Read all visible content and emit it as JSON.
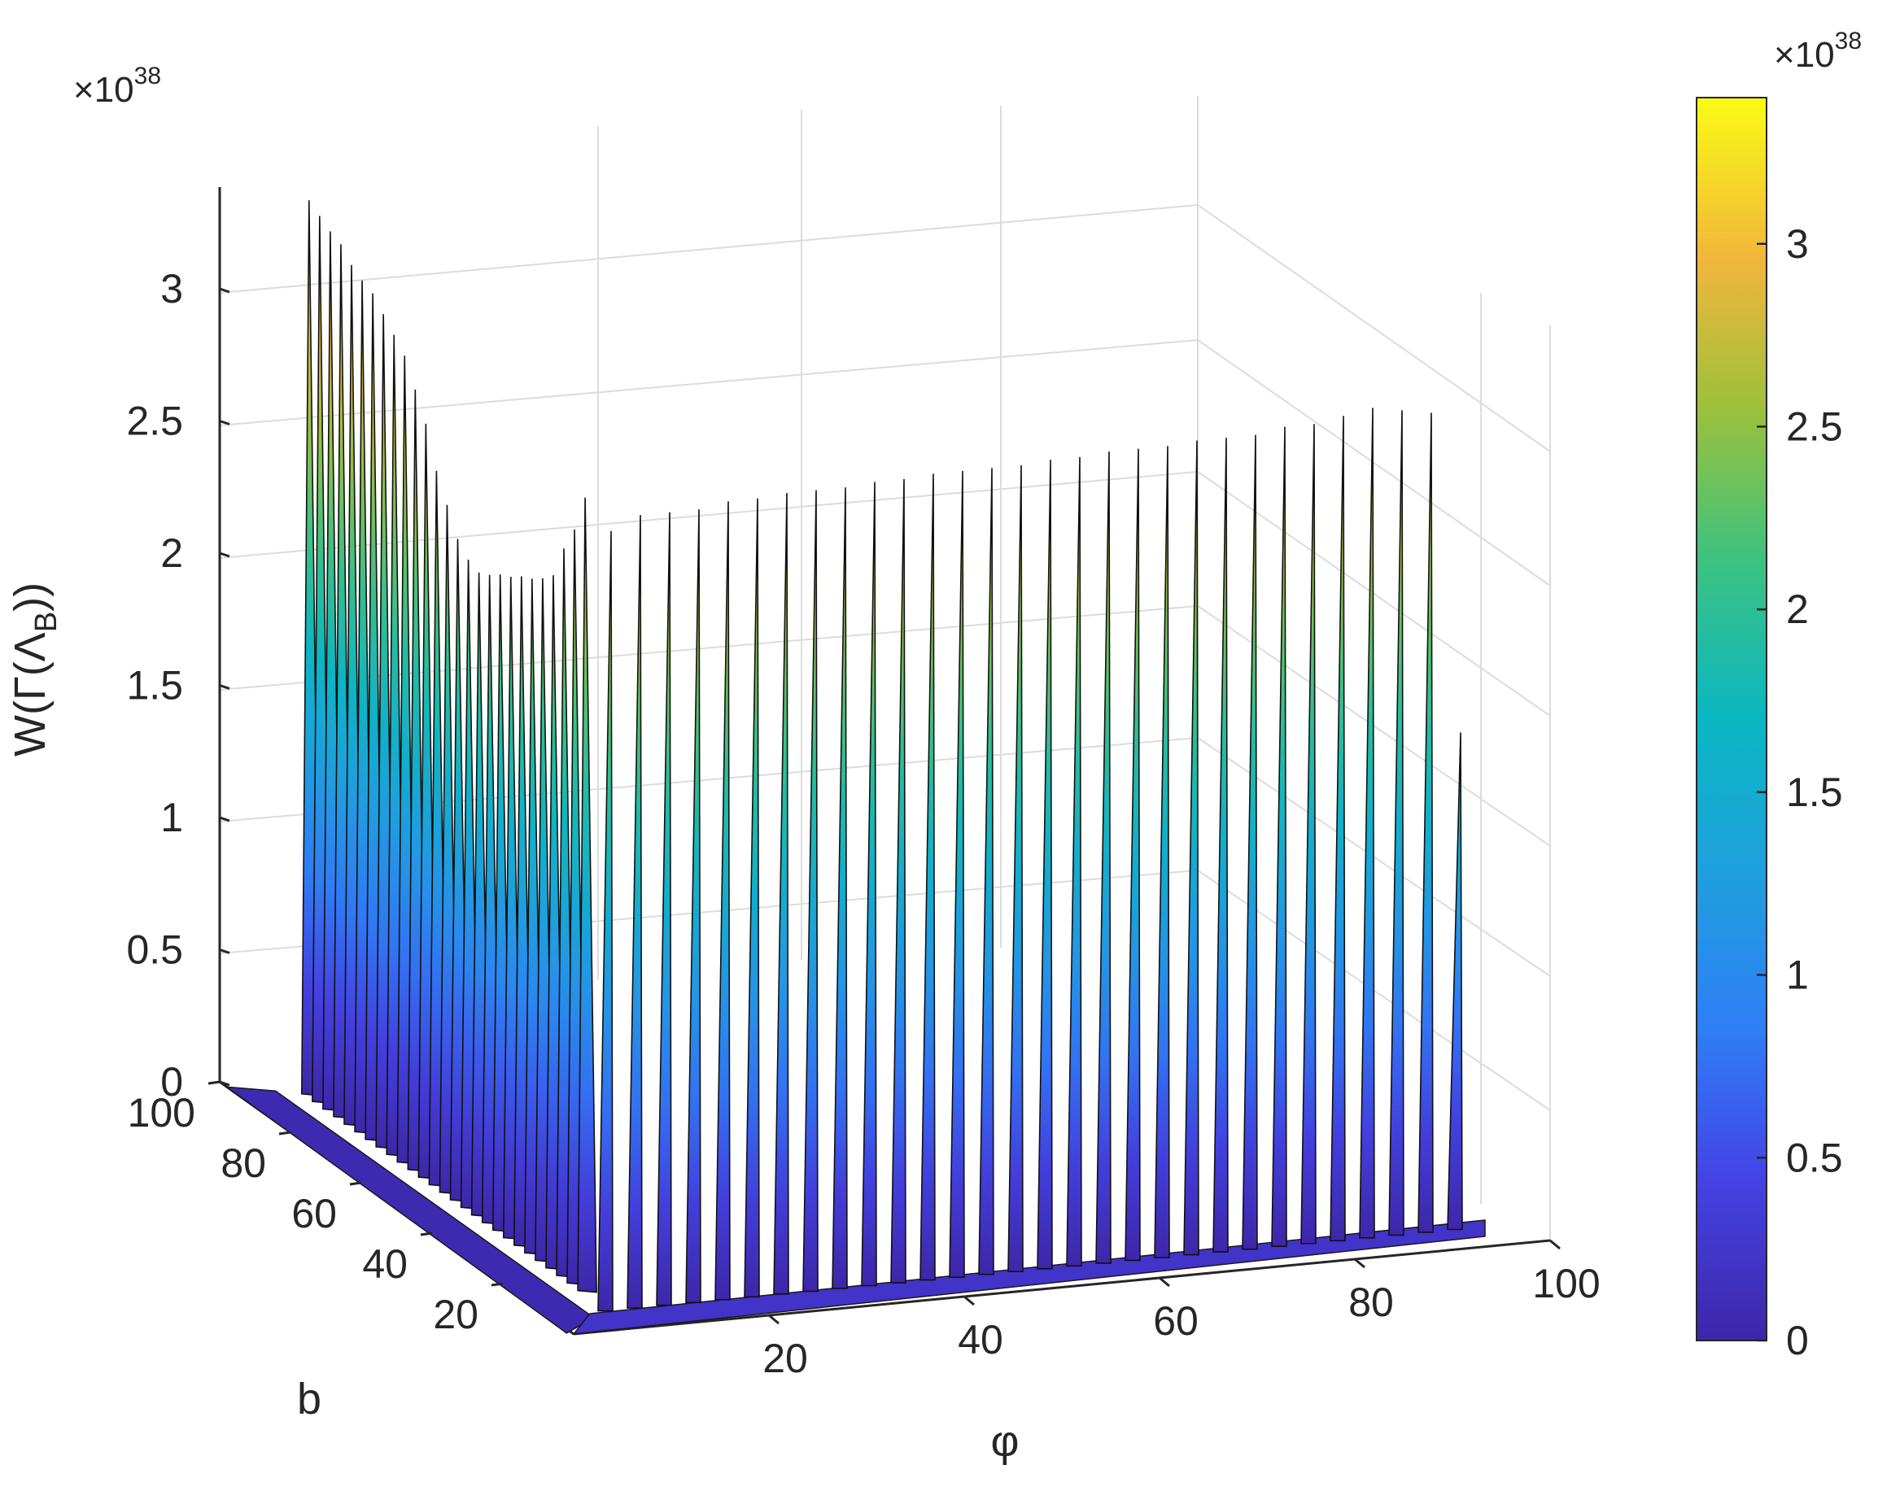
{
  "chart_data": {
    "type": "surface",
    "zlabel": "W(Γ(Λ",
    "zlabel_sub": "B",
    "zlabel_end": "))",
    "xlabel": "φ",
    "ylabel": "b",
    "z_exponent": {
      "base": "×10",
      "power": "38"
    },
    "colorbar_exponent": {
      "base": "×10",
      "power": "38"
    },
    "z_ticks": [
      "0",
      "0.5",
      "1",
      "1.5",
      "2",
      "2.5",
      "3"
    ],
    "z_tick_values": [
      0,
      0.5,
      1,
      1.5,
      2,
      2.5,
      3
    ],
    "x_ticks": [
      "20",
      "40",
      "60",
      "80",
      "100"
    ],
    "x_tick_values": [
      20,
      40,
      60,
      80,
      100
    ],
    "y_ticks": [
      "20",
      "40",
      "60",
      "80",
      "100"
    ],
    "y_tick_values": [
      20,
      40,
      60,
      80,
      100
    ],
    "colorbar_ticks": [
      "0",
      "0.5",
      "1",
      "1.5",
      "2",
      "2.5",
      "3"
    ],
    "colorbar_tick_values": [
      0,
      0.5,
      1,
      1.5,
      2,
      2.5,
      3
    ],
    "zlim": [
      0,
      3.4
    ],
    "xlim": [
      0,
      100
    ],
    "ylim": [
      0,
      100
    ],
    "clim": [
      0,
      3.4
    ],
    "colormap": "parula",
    "grid": true,
    "b_ridge": {
      "b": [
        14,
        17,
        20,
        23,
        26,
        29,
        32,
        35,
        38,
        41,
        44,
        47,
        50,
        53,
        56,
        59,
        62,
        65,
        68,
        71,
        74,
        77,
        80,
        83,
        86,
        89,
        92
      ],
      "peak": [
        3.0,
        2.85,
        2.75,
        2.62,
        2.58,
        2.55,
        2.53,
        2.5,
        2.48,
        2.45,
        2.43,
        2.45,
        2.5,
        2.6,
        2.7,
        2.85,
        2.95,
        3.05,
        3.1,
        3.15,
        3.2,
        3.22,
        3.25,
        3.3,
        3.32,
        3.35,
        3.38
      ]
    },
    "phi_ridge": {
      "phi": [
        3,
        6,
        9,
        12,
        15,
        18,
        21,
        24,
        27,
        30,
        33,
        36,
        39,
        42,
        45,
        48,
        51,
        54,
        57,
        60,
        63,
        66,
        69,
        72,
        75,
        78,
        81,
        84,
        87,
        90
      ],
      "peak": [
        2.95,
        3.0,
        3.0,
        3.0,
        3.02,
        3.02,
        3.03,
        3.03,
        3.03,
        3.04,
        3.04,
        3.05,
        3.05,
        3.05,
        3.05,
        3.06,
        3.06,
        3.07,
        3.07,
        3.07,
        3.08,
        3.08,
        3.08,
        3.1,
        3.1,
        3.12,
        3.14,
        3.12,
        3.1,
        1.88
      ]
    }
  }
}
